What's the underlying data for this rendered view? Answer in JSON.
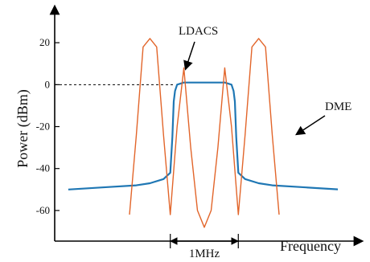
{
  "chart_data": {
    "type": "line",
    "xlabel": "Frequency",
    "ylabel": "Power (dBm)",
    "x_unit": "MHz",
    "xlim": [
      -2.2,
      2.2
    ],
    "ylim": [
      -70,
      35
    ],
    "yticks": [
      20,
      0,
      -20,
      -40,
      -60
    ],
    "grid": false,
    "reference_line": {
      "y": 0,
      "style": "dashed"
    },
    "bandwidth_marker": {
      "label": "1MHz",
      "x_start": -0.5,
      "x_end": 0.5
    },
    "annotations": [
      {
        "text": "LDACS",
        "target_series": "LDACS"
      },
      {
        "text": "DME",
        "target_series": "DME"
      }
    ],
    "series": [
      {
        "name": "LDACS",
        "color": "#1f77b4",
        "x": [
          -2.0,
          -1.5,
          -1.0,
          -0.8,
          -0.6,
          -0.5,
          -0.47,
          -0.45,
          -0.43,
          -0.4,
          -0.3,
          0.0,
          0.3,
          0.4,
          0.43,
          0.45,
          0.47,
          0.5,
          0.6,
          0.8,
          1.0,
          1.5,
          2.0
        ],
        "y": [
          -50,
          -49,
          -48,
          -47,
          -45,
          -42,
          -25,
          -8,
          -3,
          0,
          1,
          1,
          1,
          0,
          -3,
          -8,
          -25,
          -42,
          -45,
          -47,
          -48,
          -49,
          -50
        ]
      },
      {
        "name": "DME",
        "color": "#e2652a",
        "x": [
          -1.1,
          -1.0,
          -0.9,
          -0.8,
          -0.7,
          -0.6,
          -0.5,
          -0.4,
          -0.3,
          -0.2,
          -0.1,
          0.0,
          0.1,
          0.2,
          0.3,
          0.4,
          0.5,
          0.6,
          0.7,
          0.8,
          0.9,
          1.0,
          1.1
        ],
        "y": [
          -62,
          -24,
          18,
          22,
          18,
          -24,
          -62,
          -20,
          8,
          -30,
          -60,
          -68,
          -60,
          -30,
          8,
          -20,
          -62,
          -24,
          18,
          22,
          18,
          -24,
          -62
        ]
      }
    ]
  }
}
